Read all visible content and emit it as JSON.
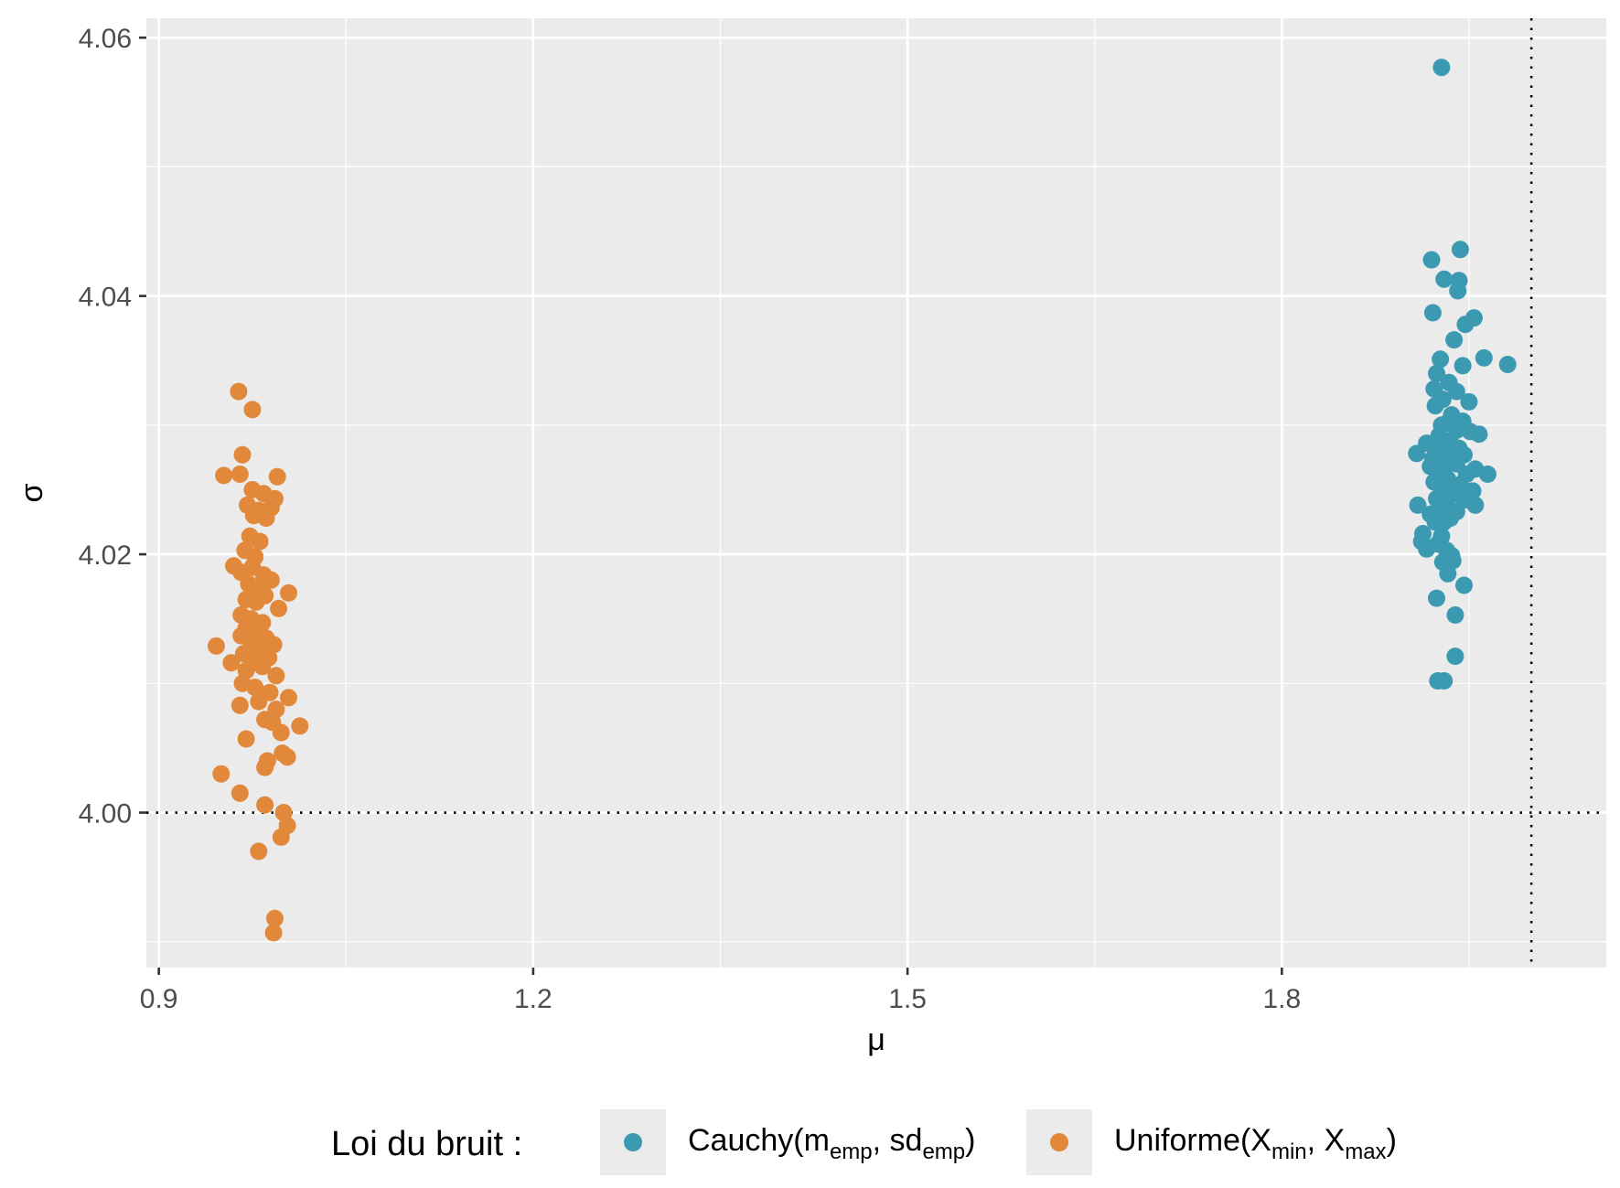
{
  "chart_data": {
    "type": "scatter",
    "xlabel": "μ",
    "ylabel": "σ",
    "xlim": [
      0.89,
      2.06
    ],
    "ylim": [
      3.988,
      4.0615
    ],
    "x_ticks": [
      0.9,
      1.2,
      1.5,
      1.8
    ],
    "x_tick_labels": [
      "0.9",
      "1.2",
      "1.5",
      "1.8"
    ],
    "y_ticks": [
      4.0,
      4.02,
      4.04,
      4.06
    ],
    "y_tick_labels": [
      "4.00",
      "4.02",
      "4.04",
      "4.06"
    ],
    "grid": true,
    "reference_lines": {
      "vertical_x": 2.0,
      "horizontal_y": 4.0,
      "style": "dotted"
    },
    "legend": {
      "position": "bottom",
      "title": "Loi du bruit :",
      "entries": [
        {
          "name": "Cauchy",
          "args": [
            {
              "base": "m",
              "sub": "emp"
            },
            {
              "base": "sd",
              "sub": "emp"
            }
          ],
          "color": "#3b9ab2"
        },
        {
          "name": "Uniforme",
          "args": [
            {
              "base": "X",
              "sub": "min"
            },
            {
              "base": "X",
              "sub": "max"
            }
          ],
          "color": "#e1883a"
        }
      ]
    },
    "series": [
      {
        "name": "Cauchy(memp, sdemp)",
        "color": "#3b9ab2",
        "points": [
          [
            1.928,
            4.0577
          ],
          [
            1.943,
            4.0436
          ],
          [
            1.92,
            4.0428
          ],
          [
            1.93,
            4.0413
          ],
          [
            1.942,
            4.0412
          ],
          [
            1.941,
            4.0404
          ],
          [
            1.921,
            4.0387
          ],
          [
            1.954,
            4.0383
          ],
          [
            1.947,
            4.0378
          ],
          [
            1.938,
            4.0366
          ],
          [
            1.962,
            4.0352
          ],
          [
            1.981,
            4.0347
          ],
          [
            1.927,
            4.0351
          ],
          [
            1.924,
            4.034
          ],
          [
            1.945,
            4.0346
          ],
          [
            1.934,
            4.0333
          ],
          [
            1.922,
            4.0328
          ],
          [
            1.94,
            4.0326
          ],
          [
            1.929,
            4.032
          ],
          [
            1.95,
            4.0318
          ],
          [
            1.923,
            4.0315
          ],
          [
            1.936,
            4.0308
          ],
          [
            1.933,
            4.0302
          ],
          [
            1.928,
            4.03
          ],
          [
            1.945,
            4.0303
          ],
          [
            1.94,
            4.0296
          ],
          [
            1.926,
            4.0292
          ],
          [
            1.951,
            4.0295
          ],
          [
            1.958,
            4.0293
          ],
          [
            1.931,
            4.0288
          ],
          [
            1.937,
            4.0284
          ],
          [
            1.916,
            4.0286
          ],
          [
            1.942,
            4.0282
          ],
          [
            1.925,
            4.028
          ],
          [
            1.929,
            4.0276
          ],
          [
            1.946,
            4.0277
          ],
          [
            1.908,
            4.0278
          ],
          [
            1.921,
            4.0274
          ],
          [
            1.935,
            4.0272
          ],
          [
            1.94,
            4.027
          ],
          [
            1.93,
            4.0266
          ],
          [
            1.919,
            4.0268
          ],
          [
            1.955,
            4.0266
          ],
          [
            1.926,
            4.0262
          ],
          [
            1.948,
            4.0262
          ],
          [
            1.965,
            4.0262
          ],
          [
            1.933,
            4.0258
          ],
          [
            1.922,
            4.0256
          ],
          [
            1.943,
            4.0254
          ],
          [
            1.929,
            4.025
          ],
          [
            1.938,
            4.0247
          ],
          [
            1.953,
            4.0249
          ],
          [
            1.924,
            4.0243
          ],
          [
            1.946,
            4.0242
          ],
          [
            1.932,
            4.024
          ],
          [
            1.909,
            4.0238
          ],
          [
            1.955,
            4.0238
          ],
          [
            1.927,
            4.0235
          ],
          [
            1.94,
            4.0233
          ],
          [
            1.919,
            4.0231
          ],
          [
            1.935,
            4.0228
          ],
          [
            1.923,
            4.0225
          ],
          [
            1.93,
            4.0225
          ],
          [
            1.913,
            4.0216
          ],
          [
            1.928,
            4.0214
          ],
          [
            1.912,
            4.021
          ],
          [
            1.925,
            4.0208
          ],
          [
            1.916,
            4.0204
          ],
          [
            1.932,
            4.0203
          ],
          [
            1.936,
            4.0199
          ],
          [
            1.929,
            4.0194
          ],
          [
            1.937,
            4.0195
          ],
          [
            1.933,
            4.0185
          ],
          [
            1.946,
            4.0176
          ],
          [
            1.924,
            4.0166
          ],
          [
            1.939,
            4.0153
          ],
          [
            1.939,
            4.0121
          ],
          [
            1.925,
            4.0102
          ],
          [
            1.93,
            4.0102
          ]
        ]
      },
      {
        "name": "Uniforme(Xmin, Xmax)",
        "color": "#e1883a",
        "points": [
          [
            0.964,
            4.0326
          ],
          [
            0.975,
            4.0312
          ],
          [
            0.967,
            4.0277
          ],
          [
            0.952,
            4.0261
          ],
          [
            0.965,
            4.0262
          ],
          [
            0.995,
            4.026
          ],
          [
            0.975,
            4.025
          ],
          [
            0.984,
            4.0247
          ],
          [
            0.993,
            4.0243
          ],
          [
            0.971,
            4.0238
          ],
          [
            0.98,
            4.0234
          ],
          [
            0.99,
            4.0236
          ],
          [
            0.976,
            4.023
          ],
          [
            0.986,
            4.0228
          ],
          [
            0.973,
            4.0214
          ],
          [
            0.981,
            4.021
          ],
          [
            0.969,
            4.0203
          ],
          [
            0.977,
            4.0198
          ],
          [
            0.96,
            4.0191
          ],
          [
            0.975,
            4.019
          ],
          [
            0.966,
            4.0186
          ],
          [
            0.984,
            4.0184
          ],
          [
            0.99,
            4.018
          ],
          [
            0.972,
            4.0177
          ],
          [
            0.98,
            4.0174
          ],
          [
            1.004,
            4.017
          ],
          [
            0.985,
            4.0168
          ],
          [
            0.97,
            4.0165
          ],
          [
            0.978,
            4.0163
          ],
          [
            0.996,
            4.0158
          ],
          [
            0.966,
            4.0153
          ],
          [
            0.974,
            4.015
          ],
          [
            0.983,
            4.0147
          ],
          [
            0.97,
            4.0143
          ],
          [
            0.978,
            4.014
          ],
          [
            0.966,
            4.0137
          ],
          [
            0.986,
            4.0135
          ],
          [
            0.974,
            4.0132
          ],
          [
            0.992,
            4.013
          ],
          [
            0.946,
            4.0129
          ],
          [
            0.98,
            4.0126
          ],
          [
            0.968,
            4.0123
          ],
          [
            0.988,
            4.012
          ],
          [
            0.975,
            4.0117
          ],
          [
            0.958,
            4.0116
          ],
          [
            0.983,
            4.0113
          ],
          [
            0.97,
            4.011
          ],
          [
            0.994,
            4.0106
          ],
          [
            0.967,
            4.01
          ],
          [
            0.977,
            4.0097
          ],
          [
            0.989,
            4.0093
          ],
          [
            1.004,
            4.0089
          ],
          [
            0.965,
            4.0083
          ],
          [
            0.98,
            4.0086
          ],
          [
            0.994,
            4.008
          ],
          [
            0.985,
            4.0072
          ],
          [
            1.013,
            4.0067
          ],
          [
            0.991,
            4.007
          ],
          [
            0.998,
            4.0062
          ],
          [
            0.97,
            4.0057
          ],
          [
            0.999,
            4.0046
          ],
          [
            0.987,
            4.004
          ],
          [
            1.003,
            4.0043
          ],
          [
            0.985,
            4.0035
          ],
          [
            0.95,
            4.003
          ],
          [
            0.965,
            4.0015
          ],
          [
            0.985,
            4.0006
          ],
          [
            1.0,
            4.0
          ],
          [
            1.003,
            3.999
          ],
          [
            0.998,
            3.9981
          ],
          [
            0.98,
            3.997
          ],
          [
            0.993,
            3.9918
          ],
          [
            0.992,
            3.9907
          ]
        ]
      }
    ]
  }
}
